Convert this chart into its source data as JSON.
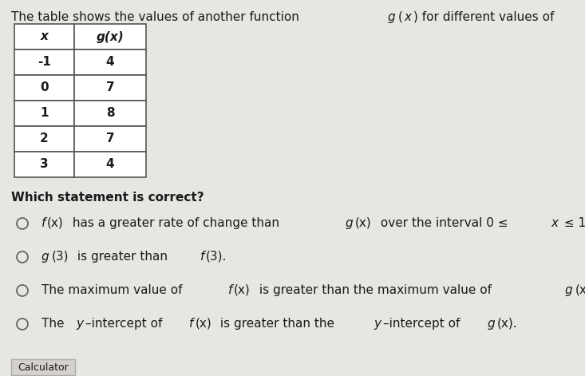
{
  "bg_color": "#e8e6e3",
  "text_color": "#1a1a1a",
  "table_bg": "#ffffff",
  "table_border": "#555555",
  "option_circle_color": "#666666",
  "calculator_label": "Calculator",
  "table_rows": [
    [
      "-1",
      "4"
    ],
    [
      "0",
      "7"
    ],
    [
      "1",
      "8"
    ],
    [
      "2",
      "7"
    ],
    [
      "3",
      "4"
    ]
  ]
}
